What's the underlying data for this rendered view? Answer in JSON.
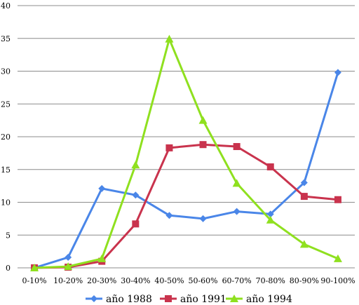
{
  "chart_data": {
    "type": "line",
    "title": "",
    "xlabel": "",
    "ylabel": "",
    "categories": [
      "0-10%",
      "10-20%",
      "20-30%",
      "30-40%",
      "40-50%",
      "50-60%",
      "60-70%",
      "70-80%",
      "80-90%",
      "90-100%"
    ],
    "ylim": [
      0,
      40
    ],
    "yticks": [
      "0",
      "5",
      "10",
      "15",
      "20",
      "25",
      "30",
      "35",
      "40"
    ],
    "grid": "horizontal",
    "legend_position": "bottom",
    "series": [
      {
        "name": "año 1988",
        "color": "#4a86e8",
        "marker": "diamond",
        "values": [
          0,
          1.6,
          12.1,
          11.1,
          8.0,
          7.5,
          8.6,
          8.2,
          13.0,
          29.8
        ]
      },
      {
        "name": "año 1991",
        "color": "#c9334d",
        "marker": "square",
        "values": [
          0,
          0.1,
          1.0,
          6.7,
          18.3,
          18.8,
          18.5,
          15.4,
          10.9,
          10.4
        ]
      },
      {
        "name": "año 1994",
        "color": "#8fe01f",
        "marker": "triangle",
        "values": [
          0,
          0.2,
          1.4,
          15.7,
          34.9,
          22.5,
          12.9,
          7.3,
          3.6,
          1.4
        ]
      }
    ]
  }
}
